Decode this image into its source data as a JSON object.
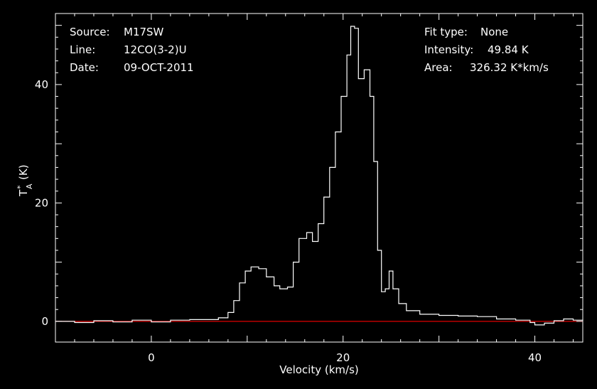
{
  "colors": {
    "background": "#000000",
    "foreground": "#ffffff",
    "baseline": "#e00000"
  },
  "info_left": [
    {
      "label": "Source:",
      "value": "M17SW"
    },
    {
      "label": "Line:",
      "value": "12CO(3-2)U"
    },
    {
      "label": "Date:",
      "value": "09-OCT-2011"
    }
  ],
  "info_right": [
    {
      "label": "Fit type:",
      "value": "None"
    },
    {
      "label": "Intensity:",
      "value": "49.84 K"
    },
    {
      "label": "Area:",
      "value": "326.32 K*km/s"
    }
  ],
  "chart_data": {
    "type": "line",
    "style": "step",
    "xlabel": "Velocity (km/s)",
    "ylabel_main": "T",
    "ylabel_sup": "*",
    "ylabel_sub": "A",
    "ylabel_unit": "(K)",
    "xlim": [
      -10,
      45
    ],
    "ylim": [
      -3.5,
      52
    ],
    "xticks": [
      0,
      20,
      40
    ],
    "yticks": [
      0,
      20,
      40
    ],
    "baseline": 0,
    "grid": false,
    "series": [
      {
        "color": "#ffffff",
        "points": [
          [
            -10,
            0
          ],
          [
            -8,
            -0.2
          ],
          [
            -6,
            0.1
          ],
          [
            -4,
            -0.1
          ],
          [
            -2,
            0.2
          ],
          [
            0,
            -0.1
          ],
          [
            2,
            0.2
          ],
          [
            4,
            0.3
          ],
          [
            6,
            0.3
          ],
          [
            7,
            0.6
          ],
          [
            8,
            1.5
          ],
          [
            8.6,
            3.5
          ],
          [
            9.2,
            6.5
          ],
          [
            9.8,
            8.5
          ],
          [
            10.4,
            9.2
          ],
          [
            11.2,
            8.9
          ],
          [
            12,
            7.5
          ],
          [
            12.8,
            6.0
          ],
          [
            13.4,
            5.5
          ],
          [
            14.2,
            5.8
          ],
          [
            14.8,
            10.0
          ],
          [
            15.4,
            14.0
          ],
          [
            16.2,
            15.0
          ],
          [
            16.8,
            13.5
          ],
          [
            17.4,
            16.5
          ],
          [
            18,
            21.0
          ],
          [
            18.6,
            26.0
          ],
          [
            19.2,
            32.0
          ],
          [
            19.8,
            38.0
          ],
          [
            20.4,
            45.0
          ],
          [
            20.8,
            49.84
          ],
          [
            21.2,
            49.5
          ],
          [
            21.6,
            41.0
          ],
          [
            22.2,
            42.5
          ],
          [
            22.8,
            38.0
          ],
          [
            23.2,
            27.0
          ],
          [
            23.6,
            12.0
          ],
          [
            24,
            5.0
          ],
          [
            24.4,
            5.5
          ],
          [
            24.8,
            8.5
          ],
          [
            25.2,
            5.5
          ],
          [
            25.8,
            3.0
          ],
          [
            26.6,
            1.8
          ],
          [
            28,
            1.2
          ],
          [
            30,
            1.0
          ],
          [
            32,
            0.9
          ],
          [
            34,
            0.8
          ],
          [
            36,
            0.4
          ],
          [
            38,
            0.2
          ],
          [
            39.5,
            -0.2
          ],
          [
            40,
            -0.6
          ],
          [
            41,
            -0.3
          ],
          [
            42,
            0.1
          ],
          [
            43,
            0.4
          ],
          [
            44,
            0.2
          ],
          [
            45,
            0.1
          ]
        ]
      }
    ]
  }
}
